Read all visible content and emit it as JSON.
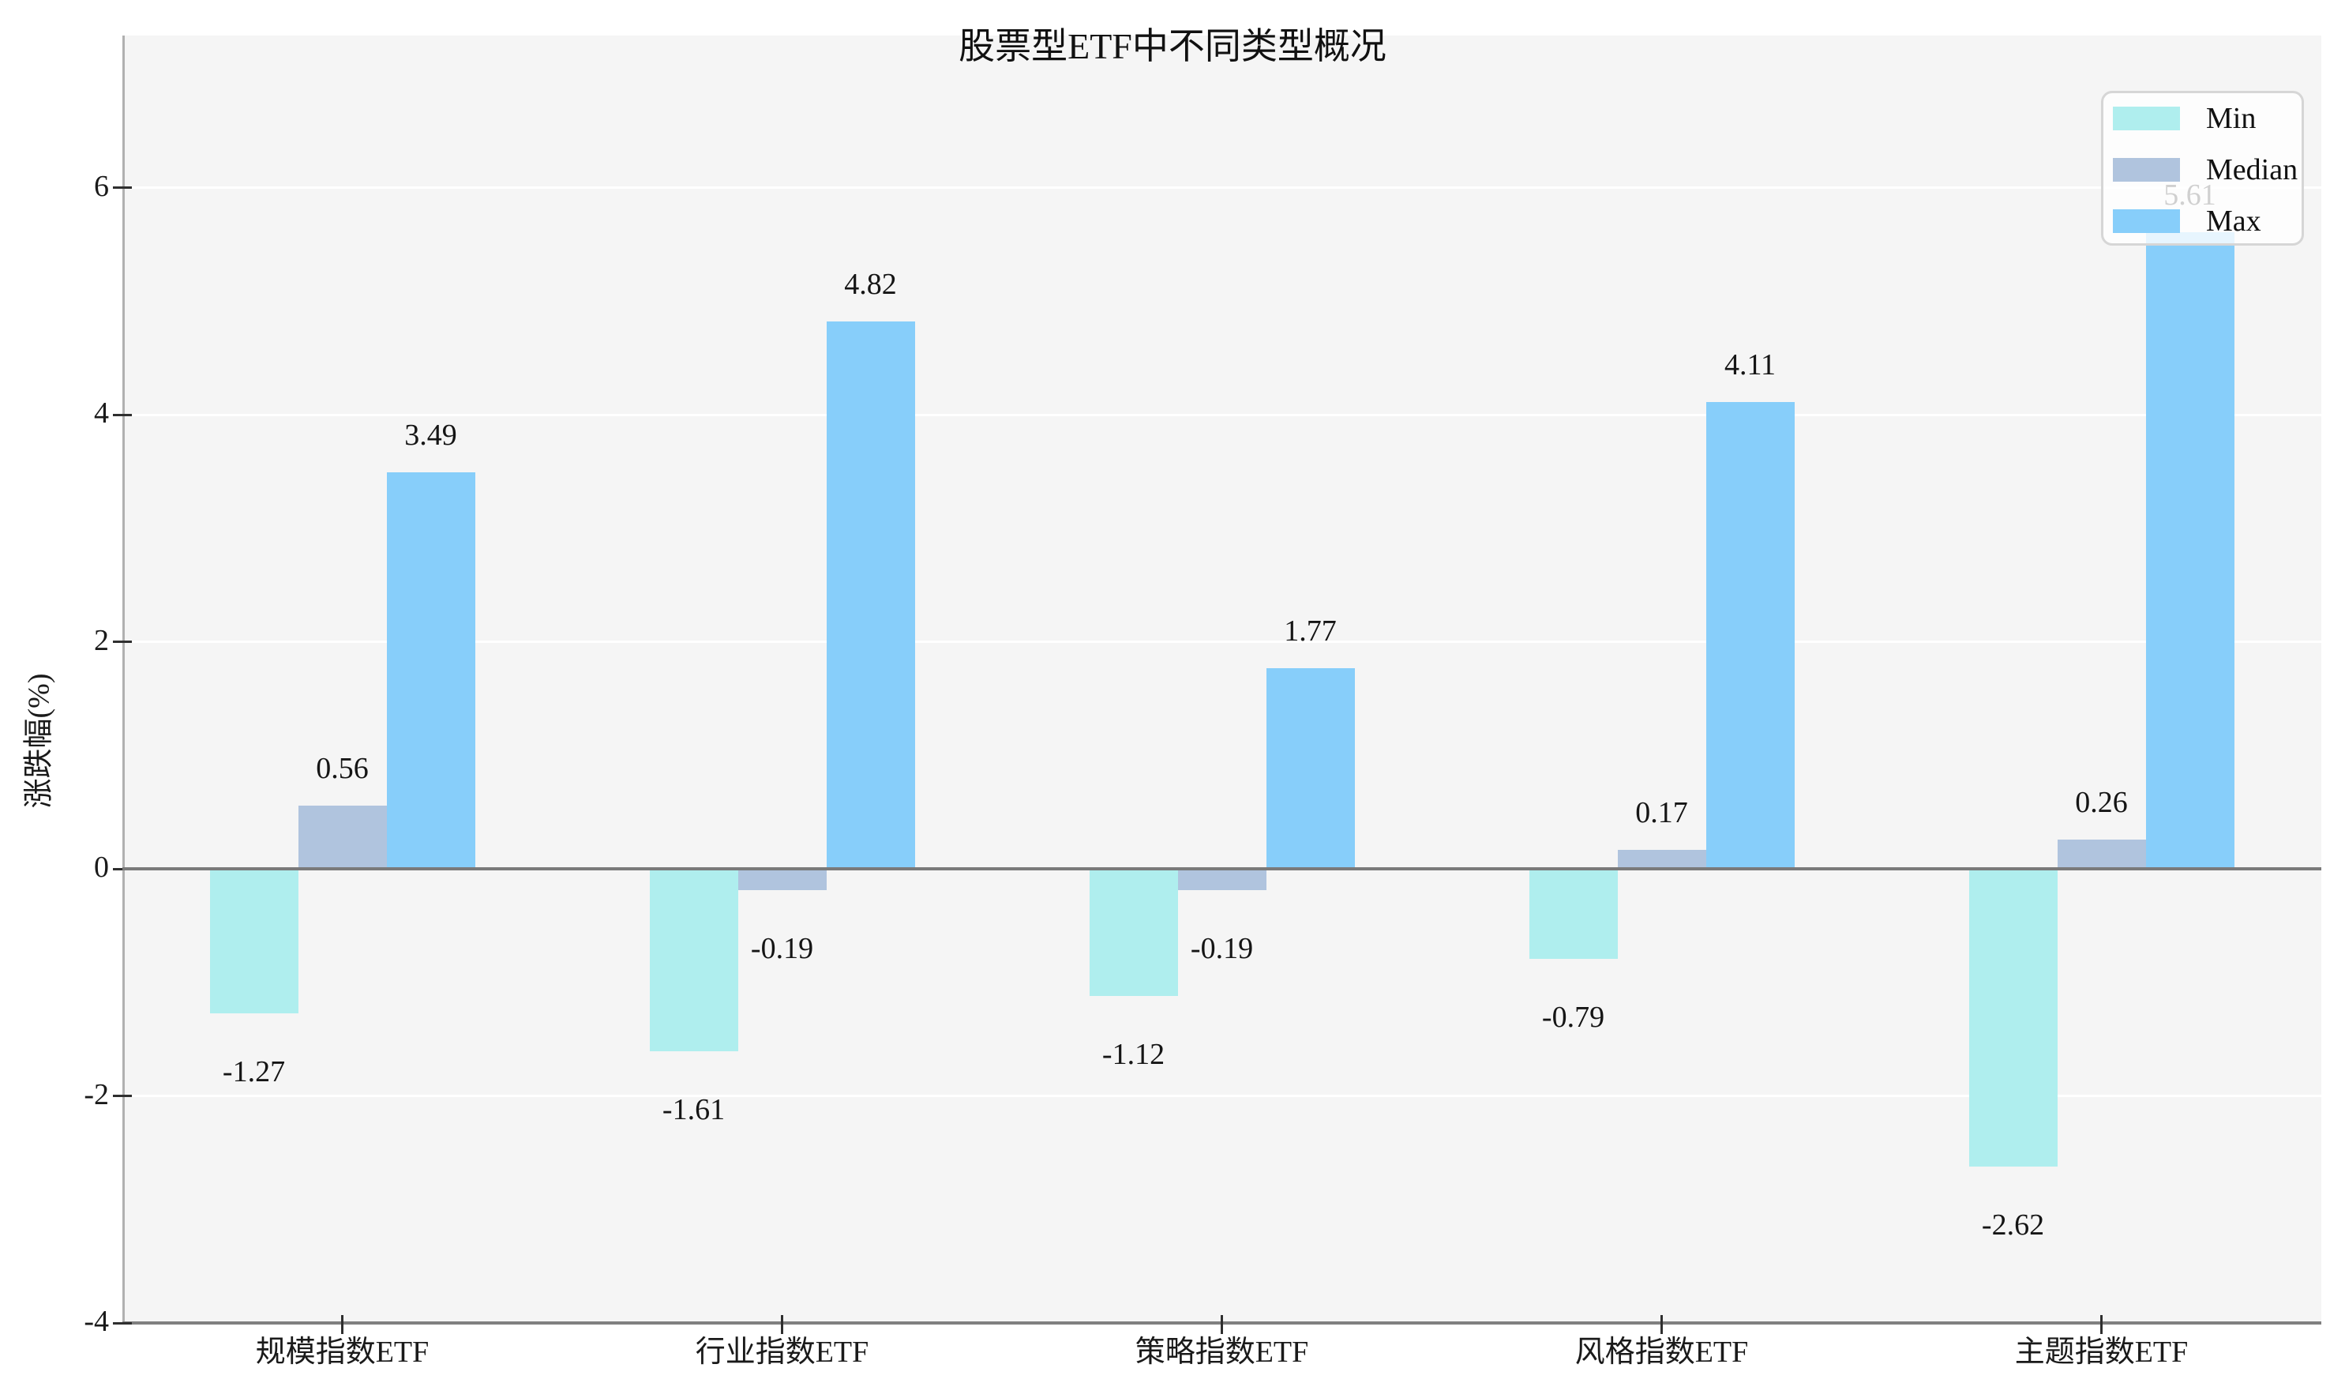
{
  "chart_data": {
    "type": "bar",
    "title": "股票型ETF中不同类型概况",
    "ylabel": "涨跌幅(%)",
    "xlabel": "",
    "categories": [
      "规模指数ETF",
      "行业指数ETF",
      "策略指数ETF",
      "风格指数ETF",
      "主题指数ETF"
    ],
    "series": [
      {
        "name": "Min",
        "color": "#AFEEEE",
        "values": [
          -1.27,
          -1.61,
          -1.12,
          -0.79,
          -2.62
        ]
      },
      {
        "name": "Median",
        "color": "#B0C4DE",
        "values": [
          0.56,
          -0.19,
          -0.19,
          0.17,
          0.26
        ]
      },
      {
        "name": "Max",
        "color": "#87CEFA",
        "values": [
          3.49,
          4.82,
          1.77,
          4.11,
          5.61
        ]
      }
    ],
    "value_labels": [
      "-1.27",
      "0.56",
      "3.49",
      "-1.61",
      "-0.19",
      "4.82",
      "-1.12",
      "-0.19",
      "1.77",
      "-0.79",
      "0.17",
      "4.11",
      "-2.62",
      "0.26",
      "5.61"
    ],
    "yticks": [
      -4,
      -2,
      0,
      2,
      4,
      6
    ],
    "ylim": [
      -4,
      7.34
    ],
    "grid": true,
    "legend_position": "top-right",
    "colors": {
      "plot_background": "#f5f5f5",
      "grid": "#ffffff",
      "zero_line": "#7a7a7a",
      "axis_spine": "#808080",
      "text": "#1a1a1a"
    }
  }
}
